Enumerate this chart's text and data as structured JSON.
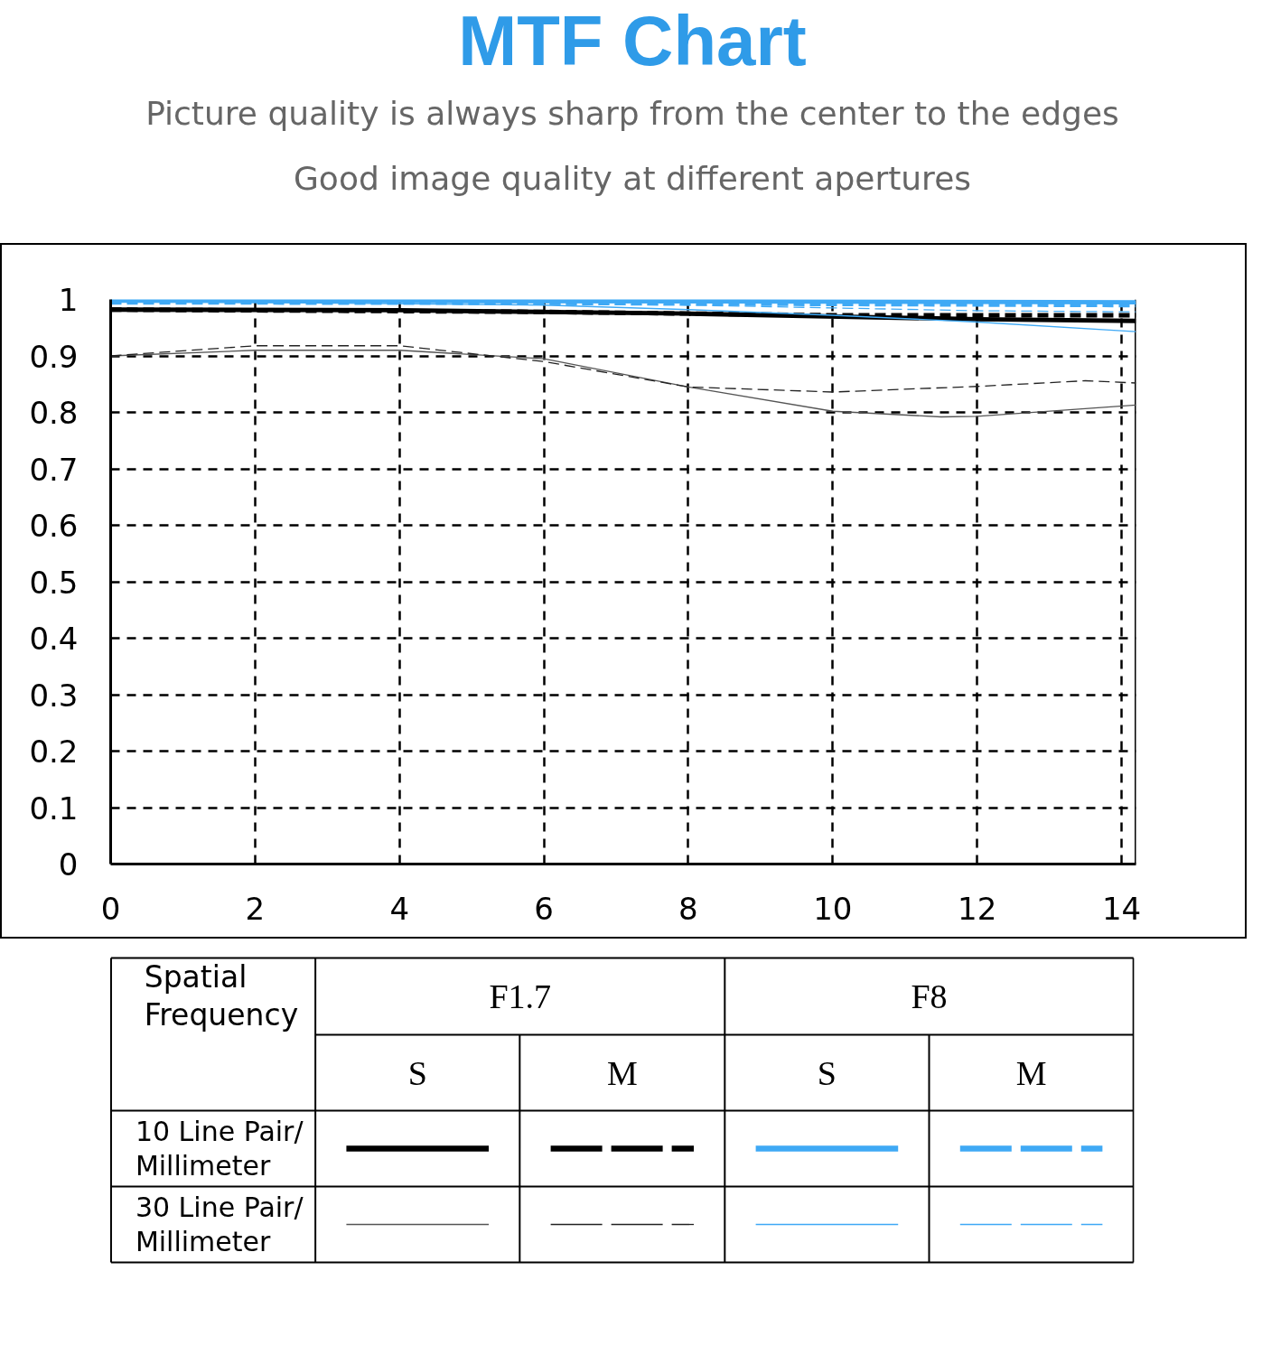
{
  "chart_data": {
    "type": "line",
    "title": "MTF Chart",
    "subtitle": "Picture quality is always sharp from the center to the edges\nGood image quality at different apertures",
    "xlim": [
      0,
      14.2
    ],
    "ylim": [
      0,
      1
    ],
    "xticks": [
      0,
      2,
      4,
      6,
      8,
      10,
      12,
      14
    ],
    "yticks": [
      0,
      0.1,
      0.2,
      0.3,
      0.4,
      0.5,
      0.6,
      0.7,
      0.8,
      0.9,
      1
    ],
    "grid": true,
    "annotations": [
      "Spatial\nFrequency",
      "F1.7",
      "F8",
      "S",
      "M",
      "S",
      "M",
      "10 Line Pair/\nMillimeter",
      "30 Line Pair/\nMillimeter"
    ],
    "series": [
      {
        "color": "#000000",
        "line_style": "solid",
        "x": [
          0,
          4,
          8,
          12,
          14.2
        ],
        "values": [
          0.982,
          0.981,
          0.975,
          0.965,
          0.962
        ]
      },
      {
        "color": "#000000",
        "line_style": "dashed",
        "x": [
          0,
          6,
          8,
          10,
          14.2
        ],
        "values": [
          0.982,
          0.978,
          0.975,
          0.972,
          0.972
        ]
      },
      {
        "color": "#3fa9f5",
        "line_style": "solid",
        "x": [
          0,
          8,
          14.2
        ],
        "values": [
          0.998,
          0.997,
          0.995
        ]
      },
      {
        "color": "#3fa9f5",
        "line_style": "dashed",
        "x": [
          0,
          6,
          10,
          14.2
        ],
        "values": [
          0.995,
          0.994,
          0.992,
          0.99
        ]
      },
      {
        "color": "#555555",
        "line_style": "solid",
        "x": [
          0,
          2,
          4,
          6,
          8,
          10,
          11.5,
          12,
          14.2
        ],
        "values": [
          0.9,
          0.91,
          0.91,
          0.895,
          0.845,
          0.802,
          0.792,
          0.793,
          0.813
        ]
      },
      {
        "color": "#222222",
        "line_style": "dashed",
        "x": [
          0,
          2,
          4,
          6,
          8,
          10,
          12,
          13.5,
          14.2
        ],
        "values": [
          0.9,
          0.918,
          0.918,
          0.89,
          0.845,
          0.836,
          0.846,
          0.856,
          0.852
        ]
      },
      {
        "color": "#3fa9f5",
        "line_style": "solid",
        "x": [
          0,
          6,
          8,
          10,
          12,
          14.2
        ],
        "values": [
          0.997,
          0.99,
          0.982,
          0.972,
          0.96,
          0.943
        ]
      },
      {
        "color": "#3fa9f5",
        "line_style": "dashed",
        "x": [
          0,
          8,
          10,
          12,
          14.2
        ],
        "values": [
          0.997,
          0.99,
          0.985,
          0.98,
          0.978
        ]
      }
    ]
  }
}
